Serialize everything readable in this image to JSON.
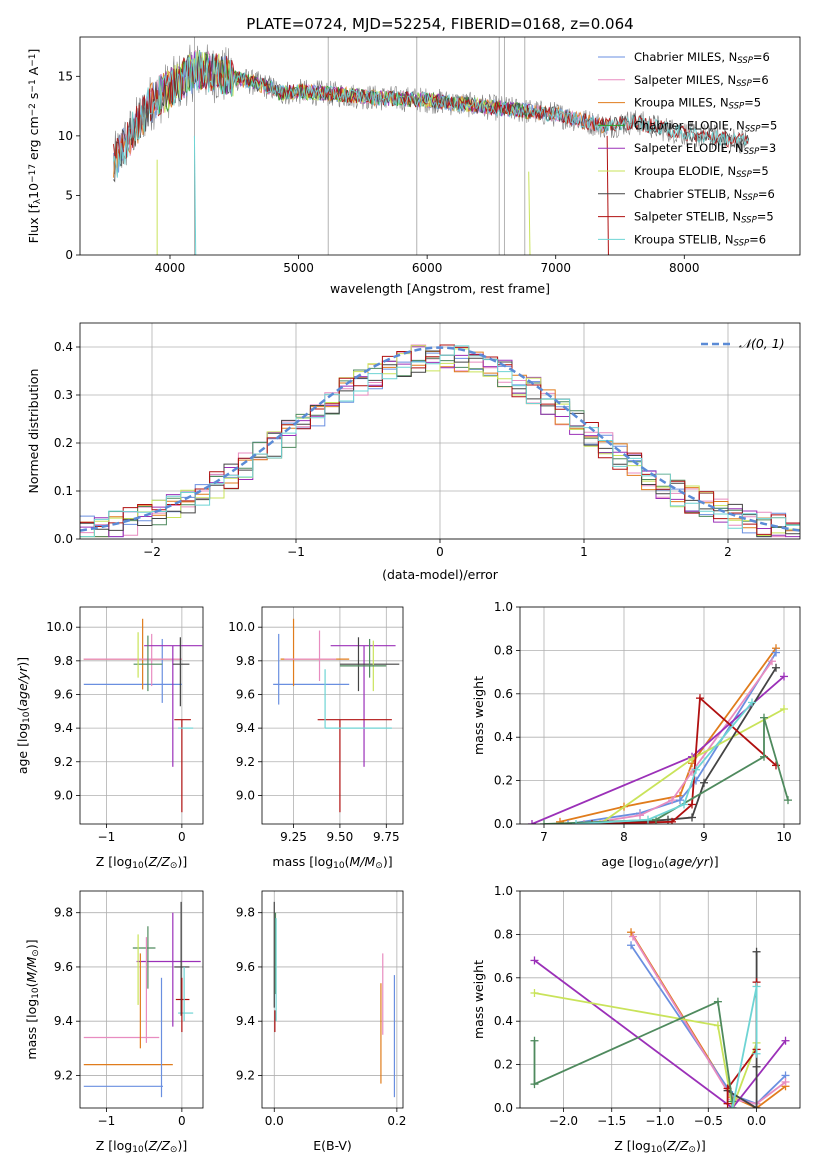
{
  "figure_title": "PLATE=0724, MJD=52254, FIBERID=0168, z=0.064",
  "colors": {
    "chabrier_miles": "#6a8fe0",
    "salpeter_miles": "#e88cc0",
    "kroupa_miles": "#e07c1c",
    "chabrier_elodie": "#2aa02a",
    "salpeter_elodie": "#9b30b8",
    "kroupa_elodie": "#c9e35a",
    "chabrier_stelib": "#444444",
    "salpeter_stelib": "#b01010",
    "kroupa_stelib": "#6ed4d4",
    "data": "#808080",
    "normal": "#5b8bd6",
    "green_dark": "#4f8a5e"
  },
  "chart_data": [
    {
      "id": "spectrum",
      "type": "line",
      "xlabel": "wavelength [Angstrom, rest frame]",
      "ylabel": "Flux [f_λ 10^-17 erg cm^-2 s^-1 A^-1]",
      "ylabel_parts": [
        "Flux [f",
        "λ",
        "10",
        "−17",
        " erg cm",
        "−2",
        " s",
        "−1",
        " A",
        "−1",
        "]"
      ],
      "xlim": [
        3300,
        8900
      ],
      "ylim": [
        0,
        18.3
      ],
      "xticks": [
        4000,
        5000,
        6000,
        7000,
        8000
      ],
      "yticks": [
        0,
        5,
        10,
        15
      ],
      "continuum": {
        "x": [
          3550,
          3700,
          3850,
          4000,
          4200,
          4500,
          4800,
          4850,
          5000,
          5300,
          5600,
          6000,
          6500,
          7000,
          7400,
          7600,
          8000,
          8500
        ],
        "y": [
          7.5,
          10.2,
          12.8,
          14.0,
          15.5,
          14.9,
          14.0,
          13.6,
          13.7,
          13.5,
          13.2,
          13.0,
          12.4,
          11.8,
          10.8,
          11.2,
          10.2,
          9.5
        ]
      },
      "legend": [
        {
          "name": "Chabrier MILES, N",
          "sub": "SSP",
          "val": "=6",
          "color_key": "chabrier_miles"
        },
        {
          "name": "Salpeter MILES, N",
          "sub": "SSP",
          "val": "=6",
          "color_key": "salpeter_miles"
        },
        {
          "name": "Kroupa MILES, N",
          "sub": "SSP",
          "val": "=5",
          "color_key": "kroupa_miles"
        },
        {
          "name": "Chabrier ELODIE, N",
          "sub": "SSP",
          "val": "=5",
          "color_key": "chabrier_elodie"
        },
        {
          "name": "Salpeter ELODIE, N",
          "sub": "SSP",
          "val": "=3",
          "color_key": "salpeter_elodie"
        },
        {
          "name": "Kroupa ELODIE, N",
          "sub": "SSP",
          "val": "=5",
          "color_key": "kroupa_elodie"
        },
        {
          "name": "Chabrier STELIB, N",
          "sub": "SSP",
          "val": "=6",
          "color_key": "chabrier_stelib"
        },
        {
          "name": "Salpeter STELIB, N",
          "sub": "SSP",
          "val": "=5",
          "color_key": "salpeter_stelib"
        },
        {
          "name": "Kroupa STELIB, N",
          "sub": "SSP",
          "val": "=6",
          "color_key": "kroupa_stelib"
        }
      ]
    },
    {
      "id": "residuals",
      "type": "line",
      "xlabel": "(data-model)/error",
      "ylabel": "Normed distribution",
      "xlim": [
        -2.5,
        2.5
      ],
      "ylim": [
        0,
        0.45
      ],
      "xticks": [
        -2,
        -1,
        0,
        1,
        2
      ],
      "xtick_labels": [
        "−2",
        "−1",
        "0",
        "1",
        "2"
      ],
      "yticks": [
        0.0,
        0.1,
        0.2,
        0.3,
        0.4
      ],
      "ytick_labels": [
        "0.0",
        "0.1",
        "0.2",
        "0.3",
        "0.4"
      ],
      "legend_label": "𝒩(0, 1)",
      "grid": true
    },
    {
      "id": "age_vs_Z",
      "type": "scatter",
      "xlabel": "Z [log10(Z/Z⊙)]",
      "ylabel": "age [log10(age/yr)]",
      "xlim": [
        -1.35,
        0.28
      ],
      "ylim": [
        8.83,
        10.12
      ],
      "xticks": [
        -1,
        0
      ],
      "xtick_labels": [
        "−1",
        "0"
      ],
      "yticks": [
        9.0,
        9.2,
        9.4,
        9.6,
        9.8,
        10.0
      ],
      "ytick_labels": [
        "9.0",
        "9.2",
        "9.4",
        "9.6",
        "9.8",
        "10.0"
      ],
      "points": [
        {
          "x": -0.6,
          "xe": 0.65,
          "y": 9.66,
          "ye": 0.0,
          "ye_lo": 0.0,
          "ye_hi": 0.0,
          "c": "chabrier_miles",
          "ylo": 9.66,
          "yhi": 9.66
        },
        {
          "x": -0.25,
          "xe": 0,
          "y": 9.75,
          "ye_lo": 0.2,
          "ye_hi": 0.18,
          "c": "chabrier_miles"
        },
        {
          "x": -0.4,
          "xe": 0.9,
          "y": 9.81,
          "ye_lo": 0.0,
          "ye_hi": 0.0,
          "c": "kroupa_miles"
        },
        {
          "x": -0.5,
          "xe": 0,
          "y": 9.81,
          "ye_lo": 0.18,
          "ye_hi": 0.25,
          "c": "kroupa_miles"
        },
        {
          "x": -0.55,
          "xe": 0.75,
          "y": 9.81,
          "ye_lo": 0.0,
          "ye_hi": 0.0,
          "c": "salpeter_miles"
        },
        {
          "x": -0.45,
          "xe": 0,
          "y": 9.81,
          "ye_lo": 0.15,
          "ye_hi": 0.15,
          "c": "salpeter_miles"
        },
        {
          "x": -0.12,
          "xe": 0.38,
          "y": 9.89,
          "ye_lo": 0.72,
          "ye_hi": 0.0,
          "c": "salpeter_elodie"
        },
        {
          "x": -0.45,
          "xe": 0.18,
          "y": 9.78,
          "ye_lo": 0.15,
          "ye_hi": 0.18,
          "c": "green_dark"
        },
        {
          "x": 0.0,
          "xe": 0.0,
          "y": 9.78,
          "ye_lo": 0.25,
          "ye_hi": 0.16,
          "c": "chabrier_stelib"
        },
        {
          "x": 0.02,
          "xe": 0.1,
          "y": 9.78,
          "ye_lo": 0.0,
          "ye_hi": 0.0,
          "c": "chabrier_stelib"
        },
        {
          "x": 0.0,
          "xe": 0.12,
          "y": 9.45,
          "ye_lo": 0.55,
          "ye_hi": 0.0,
          "c": "salpeter_stelib"
        },
        {
          "x": 0.02,
          "xe": 0.1,
          "y": 9.4,
          "ye_lo": 0.0,
          "ye_hi": 0.0,
          "c": "kroupa_stelib"
        },
        {
          "x": -0.58,
          "xe": 0,
          "y": 9.85,
          "ye_lo": 0.05,
          "ye_hi": 0.12,
          "c": "kroupa_elodie"
        }
      ]
    },
    {
      "id": "age_vs_mass",
      "type": "scatter",
      "xlabel": "mass [log10(M/M⊙)]",
      "xlim": [
        9.08,
        9.84
      ],
      "ylim": [
        8.83,
        10.12
      ],
      "xticks": [
        9.25,
        9.5,
        9.75
      ],
      "xtick_labels": [
        "9.25",
        "9.50",
        "9.75"
      ],
      "yticks": [
        9.0,
        9.2,
        9.4,
        9.6,
        9.8,
        10.0
      ],
      "ytick_labels": [
        "9.0",
        "9.2",
        "9.4",
        "9.6",
        "9.8",
        "10.0"
      ]
    },
    {
      "id": "mass_weight_vs_age",
      "type": "line",
      "xlabel": "age [log10(age/yr)]",
      "ylabel": "mass weight",
      "xlim": [
        6.7,
        10.2
      ],
      "ylim": [
        0.0,
        1.0
      ],
      "xticks": [
        7,
        8,
        9,
        10
      ],
      "yticks": [
        0.0,
        0.2,
        0.4,
        0.6,
        0.8,
        1.0
      ],
      "ytick_labels": [
        "0.0",
        "0.2",
        "0.4",
        "0.6",
        "0.8",
        "1.0"
      ],
      "series": [
        {
          "c": "kroupa_miles",
          "x": [
            7.2,
            8.0,
            8.7,
            8.85,
            9.9
          ],
          "y": [
            0.01,
            0.08,
            0.13,
            0.28,
            0.81
          ]
        },
        {
          "c": "chabrier_miles",
          "x": [
            7.3,
            8.2,
            8.7,
            8.9,
            9.9
          ],
          "y": [
            0.0,
            0.05,
            0.11,
            0.2,
            0.79
          ]
        },
        {
          "c": "salpeter_miles",
          "x": [
            7.5,
            8.2,
            8.6,
            8.85,
            9.85
          ],
          "y": [
            0.0,
            0.04,
            0.11,
            0.24,
            0.75
          ]
        },
        {
          "c": "salpeter_elodie",
          "x": [
            6.85,
            8.85,
            10.0
          ],
          "y": [
            0.0,
            0.31,
            0.68
          ]
        },
        {
          "c": "kroupa_elodie",
          "x": [
            7.7,
            8.85,
            10.0
          ],
          "y": [
            0.0,
            0.3,
            0.53
          ]
        },
        {
          "c": "chabrier_stelib",
          "x": [
            7.8,
            8.55,
            8.85,
            9.0,
            9.9
          ],
          "y": [
            0.0,
            0.02,
            0.03,
            0.19,
            0.72
          ]
        },
        {
          "c": "salpeter_stelib",
          "x": [
            7.6,
            8.6,
            8.85,
            8.95,
            9.9
          ],
          "y": [
            0.0,
            0.01,
            0.09,
            0.58,
            0.27
          ]
        },
        {
          "c": "green_dark",
          "x": [
            7.0,
            8.4,
            9.75,
            9.75,
            10.05
          ],
          "y": [
            0.0,
            0.02,
            0.31,
            0.49,
            0.11
          ]
        },
        {
          "c": "kroupa_stelib",
          "x": [
            7.4,
            8.3,
            8.75,
            8.9,
            9.6
          ],
          "y": [
            0.0,
            0.02,
            0.09,
            0.25,
            0.56
          ]
        }
      ]
    },
    {
      "id": "mass_vs_Z",
      "type": "scatter",
      "xlabel": "Z [log10(Z/Z⊙)]",
      "ylabel": "mass [log10(M/M⊙)]",
      "xlim": [
        -1.35,
        0.28
      ],
      "ylim": [
        9.08,
        9.88
      ],
      "xticks": [
        -1,
        0
      ],
      "xtick_labels": [
        "−1",
        "0"
      ],
      "yticks": [
        9.2,
        9.4,
        9.6,
        9.8
      ],
      "ytick_labels": [
        "9.2",
        "9.4",
        "9.6",
        "9.8"
      ]
    },
    {
      "id": "mass_vs_ebv",
      "type": "scatter",
      "xlabel": "E(B-V)",
      "xlim": [
        -0.02,
        0.21
      ],
      "ylim": [
        9.08,
        9.88
      ],
      "xticks": [
        0.0,
        0.2
      ],
      "xtick_labels": [
        "0.0",
        "0.2"
      ],
      "yticks": [
        9.2,
        9.4,
        9.6,
        9.8
      ],
      "ytick_labels": [
        "9.2",
        "9.4",
        "9.6",
        "9.8"
      ]
    },
    {
      "id": "mass_weight_vs_Z",
      "type": "line",
      "xlabel": "Z [log10(Z/Z⊙)]",
      "ylabel": "mass weight",
      "xlim": [
        -2.45,
        0.45
      ],
      "ylim": [
        0.0,
        1.0
      ],
      "xticks": [
        -2.0,
        -1.5,
        -1.0,
        -0.5,
        0.0
      ],
      "xtick_labels": [
        "−2.0",
        "−1.5",
        "−1.0",
        "−0.5",
        "0.0"
      ],
      "yticks": [
        0.0,
        0.2,
        0.4,
        0.6,
        0.8,
        1.0
      ],
      "ytick_labels": [
        "0.0",
        "0.2",
        "0.4",
        "0.6",
        "0.8",
        "1.0"
      ],
      "series": [
        {
          "c": "kroupa_miles",
          "x": [
            -1.3,
            -0.25,
            0.0,
            0.3
          ],
          "y": [
            0.81,
            0.05,
            0.0,
            0.1
          ]
        },
        {
          "c": "chabrier_miles",
          "x": [
            -1.3,
            -0.25,
            0.0,
            0.3
          ],
          "y": [
            0.75,
            0.06,
            0.02,
            0.15
          ]
        },
        {
          "c": "salpeter_miles",
          "x": [
            -1.28,
            -0.25,
            0.0,
            0.3
          ],
          "y": [
            0.79,
            0.04,
            0.02,
            0.12
          ]
        },
        {
          "c": "salpeter_elodie",
          "x": [
            -2.3,
            -0.25,
            0.3
          ],
          "y": [
            0.68,
            0.0,
            0.31
          ]
        },
        {
          "c": "kroupa_elodie",
          "x": [
            -2.3,
            -0.4,
            -0.25,
            0.0
          ],
          "y": [
            0.53,
            0.38,
            0.0,
            0.3
          ]
        },
        {
          "c": "chabrier_stelib",
          "x": [
            -0.3,
            0.0,
            0.0,
            0.0
          ],
          "y": [
            0.08,
            0.0,
            0.72,
            0.19
          ]
        },
        {
          "c": "salpeter_stelib",
          "x": [
            -0.3,
            -0.3,
            0.0,
            0.0
          ],
          "y": [
            0.02,
            0.09,
            0.27,
            0.58
          ]
        },
        {
          "c": "green_dark",
          "x": [
            -2.3,
            -2.3,
            -0.4,
            -0.25,
            -0.25
          ],
          "y": [
            0.31,
            0.11,
            0.49,
            0.03,
            0.0
          ]
        },
        {
          "c": "kroupa_stelib",
          "x": [
            -0.25,
            0.0,
            0.0
          ],
          "y": [
            0.0,
            0.56,
            0.25
          ]
        }
      ]
    }
  ]
}
